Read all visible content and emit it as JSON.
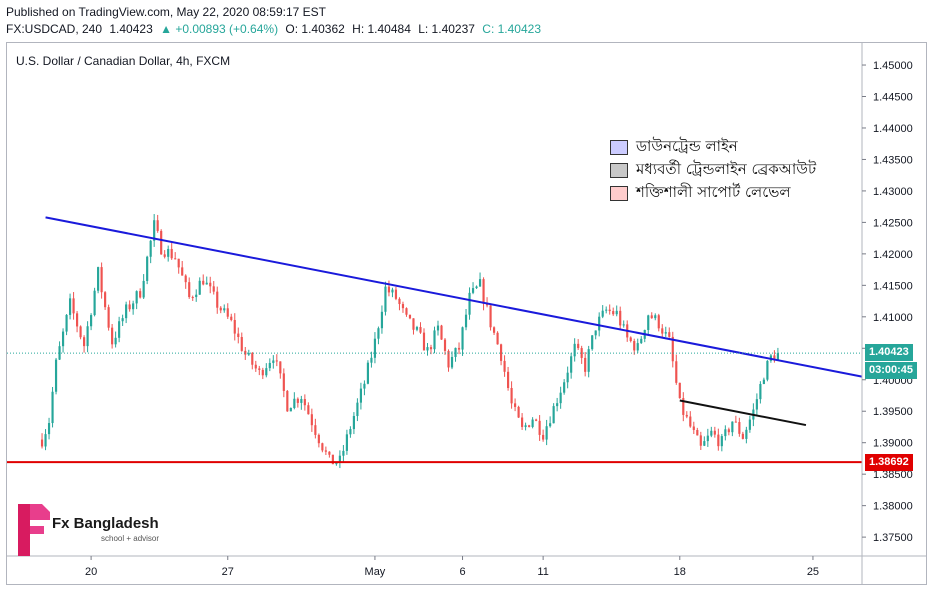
{
  "header": {
    "published": "Published on TradingView.com, May 22, 2020 08:59:17 EST",
    "symbol": "FX:USDCAD, 240",
    "last": "1.40423",
    "change": "▲ +0.00893 (+0.64%)",
    "open": "O: 1.40362",
    "high": "H: 1.40484",
    "low": "L: 1.40237",
    "close": "C: 1.40423"
  },
  "chart_title": "U.S. Dollar / Canadian Dollar, 4h, FXCM",
  "legend": [
    {
      "label": "ডাউনট্রেন্ড লাইন",
      "color": "#ccccff"
    },
    {
      "label": "মধ্যবর্তী ট্রেন্ডলাইন ব্রেকআউট",
      "color": "#c8c8c8"
    },
    {
      "label": "শক্তিশালী সাপোর্ট লেভেল",
      "color": "#ffcccc"
    }
  ],
  "price_tags": {
    "last_price": "1.40423",
    "countdown": "03:00:45",
    "support": "1.38692"
  },
  "logo": {
    "name": "Fx Bangladesh",
    "tagline": "school + advisor"
  },
  "colors": {
    "up": "#26a69a",
    "down": "#ef5350",
    "trendline": "#1a1adb",
    "support": "#e00000",
    "last_tag": "#26a69a"
  },
  "chart_data": {
    "type": "candlestick",
    "y_ticks": [
      "1.45000",
      "1.44500",
      "1.44000",
      "1.43500",
      "1.43000",
      "1.42500",
      "1.42000",
      "1.41500",
      "1.41000",
      "1.40500",
      "1.40000",
      "1.39500",
      "1.39000",
      "1.38500",
      "1.38000",
      "1.37500"
    ],
    "ylim": [
      1.372,
      1.4535
    ],
    "x_ticks": [
      "20",
      "27",
      "May",
      "6",
      "11",
      "18",
      "25"
    ],
    "x_tick_index": [
      14,
      53,
      95,
      120,
      143,
      182,
      220
    ],
    "index_range": [
      -10,
      234
    ],
    "last_index": 210,
    "price_waypoints": [
      [
        0,
        1.3905
      ],
      [
        2,
        1.3935
      ],
      [
        4,
        1.4025
      ],
      [
        8,
        1.412
      ],
      [
        12,
        1.4055
      ],
      [
        16,
        1.417
      ],
      [
        20,
        1.406
      ],
      [
        24,
        1.411
      ],
      [
        28,
        1.414
      ],
      [
        32,
        1.4245
      ],
      [
        34,
        1.421
      ],
      [
        38,
        1.4195
      ],
      [
        42,
        1.413
      ],
      [
        46,
        1.416
      ],
      [
        50,
        1.412
      ],
      [
        54,
        1.409
      ],
      [
        58,
        1.404
      ],
      [
        62,
        1.401
      ],
      [
        66,
        1.404
      ],
      [
        70,
        1.396
      ],
      [
        74,
        1.3975
      ],
      [
        78,
        1.392
      ],
      [
        82,
        1.387
      ],
      [
        85,
        1.387
      ],
      [
        88,
        1.3925
      ],
      [
        92,
        1.3995
      ],
      [
        95,
        1.406
      ],
      [
        98,
        1.4145
      ],
      [
        101,
        1.413
      ],
      [
        104,
        1.4095
      ],
      [
        107,
        1.4075
      ],
      [
        110,
        1.4045
      ],
      [
        113,
        1.408
      ],
      [
        116,
        1.4025
      ],
      [
        119,
        1.405
      ],
      [
        122,
        1.413
      ],
      [
        125,
        1.415
      ],
      [
        128,
        1.409
      ],
      [
        131,
        1.404
      ],
      [
        134,
        1.396
      ],
      [
        137,
        1.392
      ],
      [
        140,
        1.394
      ],
      [
        143,
        1.3915
      ],
      [
        146,
        1.3955
      ],
      [
        149,
        1.4
      ],
      [
        152,
        1.405
      ],
      [
        155,
        1.402
      ],
      [
        158,
        1.4085
      ],
      [
        161,
        1.411
      ],
      [
        164,
        1.4105
      ],
      [
        167,
        1.4065
      ],
      [
        170,
        1.405
      ],
      [
        173,
        1.4105
      ],
      [
        176,
        1.409
      ],
      [
        179,
        1.406
      ],
      [
        182,
        1.396
      ],
      [
        185,
        1.3925
      ],
      [
        188,
        1.389
      ],
      [
        191,
        1.3915
      ],
      [
        194,
        1.39
      ],
      [
        197,
        1.3935
      ],
      [
        200,
        1.391
      ],
      [
        203,
        1.395
      ],
      [
        206,
        1.401
      ],
      [
        208,
        1.4035
      ],
      [
        210,
        1.4042
      ]
    ],
    "lines": [
      {
        "name": "downtrend",
        "from": [
          1,
          1.4258
        ],
        "to": [
          234,
          1.4005
        ],
        "color": "#1a1adb"
      },
      {
        "name": "intermediate-breakout",
        "from": [
          182,
          1.3967
        ],
        "to": [
          218,
          1.3928
        ],
        "color": "#111111"
      },
      {
        "name": "support",
        "from": [
          -10,
          1.38692
        ],
        "to": [
          234,
          1.38692
        ],
        "color": "#e00000"
      },
      {
        "name": "last-price",
        "from": [
          -10,
          1.40423
        ],
        "to": [
          234,
          1.40423
        ],
        "color": "#26a69a",
        "dotted": true
      }
    ]
  }
}
